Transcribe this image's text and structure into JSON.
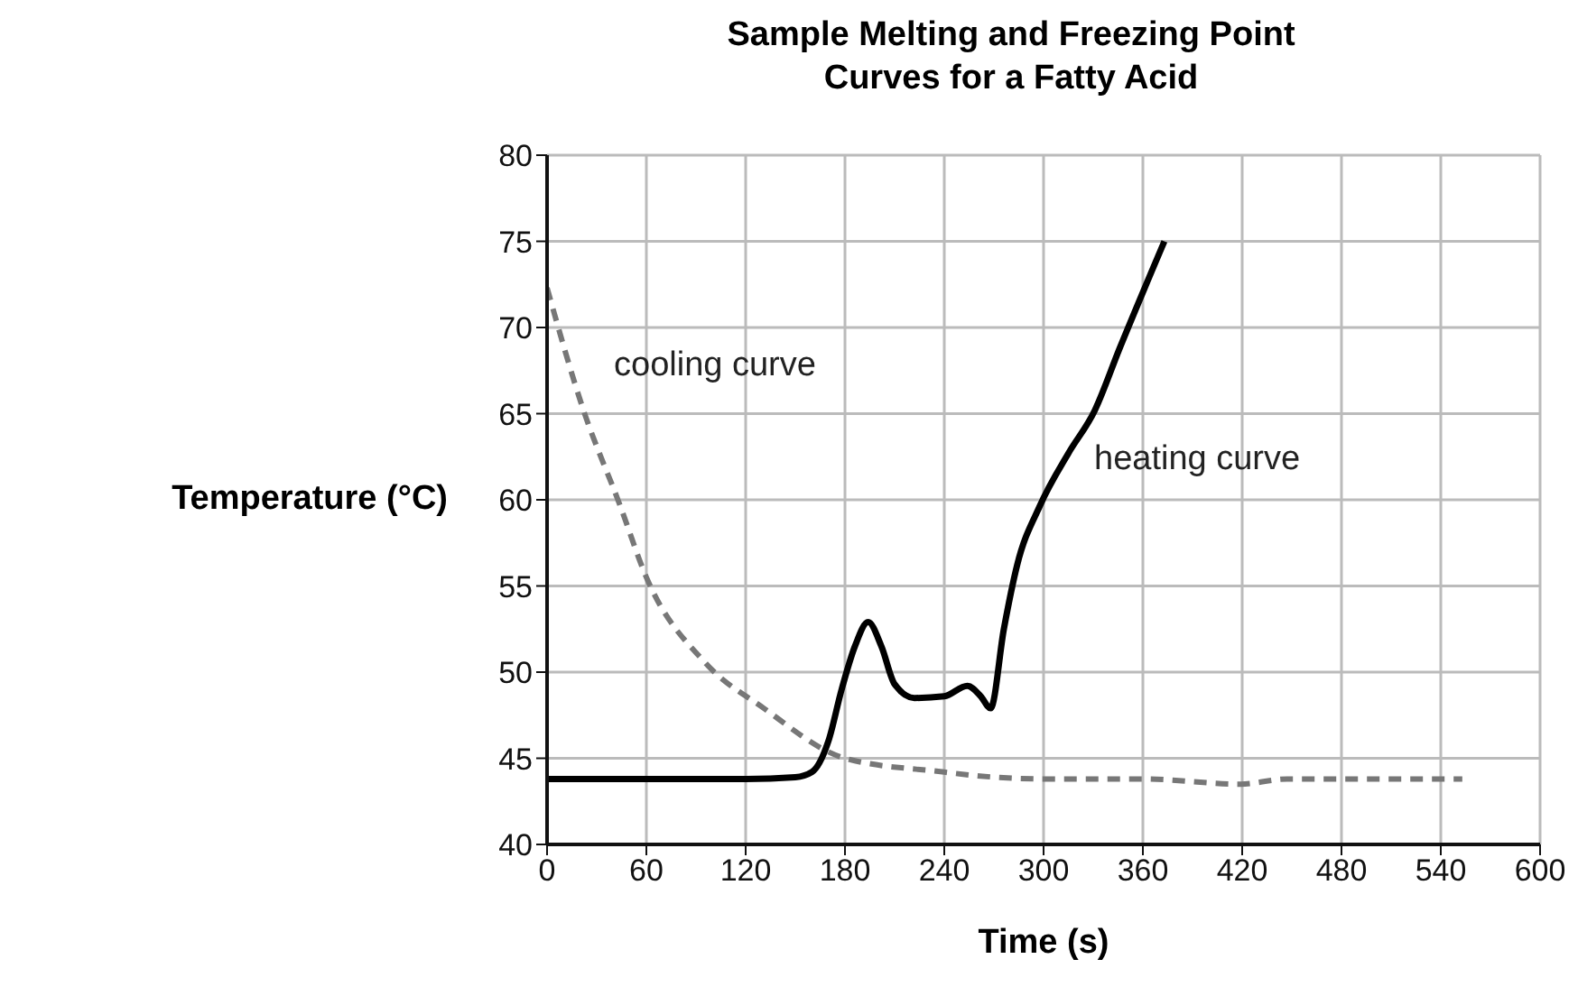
{
  "chart_data": {
    "type": "line",
    "title": "Sample Melting and Freezing Point Curves for a Fatty Acid",
    "xlabel": "Time (s)",
    "ylabel": "Temperature (°C)",
    "xlim": [
      0,
      600
    ],
    "xticks": [
      0,
      60,
      120,
      180,
      240,
      300,
      360,
      420,
      480,
      540,
      600
    ],
    "ylim": [
      40,
      80
    ],
    "yticks": [
      40,
      45,
      50,
      55,
      60,
      65,
      70,
      75,
      80
    ],
    "grid": true,
    "marker": "none",
    "series": [
      {
        "name": "cooling curve",
        "color": "#777777",
        "line_style": "dashed",
        "x": [
          0,
          22,
          44,
          60,
          95,
          131,
          180,
          240,
          258,
          300,
          360,
          419,
          447,
          480,
          553
        ],
        "values": [
          72.3,
          65.2,
          59.7,
          55.5,
          50.6,
          47.9,
          45.0,
          44.2,
          44.0,
          43.8,
          43.8,
          43.5,
          43.8,
          43.8,
          43.8
        ]
      },
      {
        "name": "heating curve",
        "color": "#000000",
        "line_style": "solid",
        "x": [
          0,
          60,
          120,
          150,
          160,
          170,
          178,
          186,
          194,
          202,
          210,
          222,
          240,
          254,
          262,
          268,
          276,
          284,
          298,
          315,
          331,
          346,
          373
        ],
        "values": [
          43.8,
          43.8,
          43.8,
          43.9,
          44.2,
          46,
          49,
          51.5,
          52.9,
          51.5,
          49.3,
          48.5,
          48.6,
          49.2,
          48.6,
          47.9,
          52.5,
          56.2,
          59.7,
          62.7,
          65.2,
          68.8,
          75
        ]
      }
    ]
  }
}
